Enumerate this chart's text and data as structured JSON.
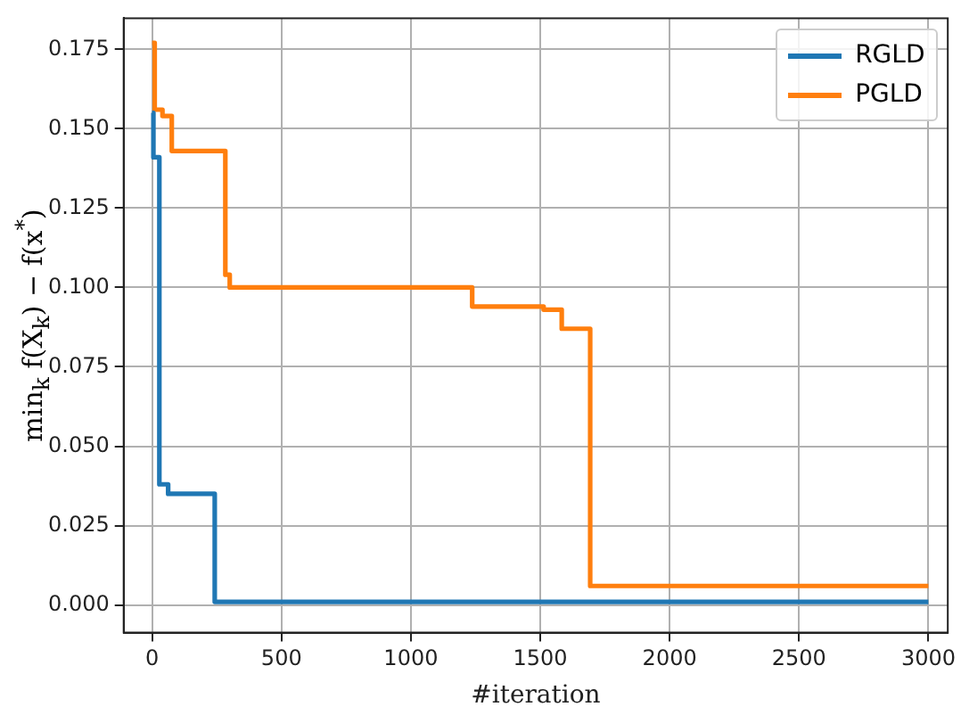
{
  "chart_data": {
    "type": "step",
    "xlabel": "#iteration",
    "ylabel": "min$_{k}$ f(X$_{k}$) − f(x$^{*}$)",
    "xlim": [
      -110,
      3075
    ],
    "ylim": [
      -0.0087,
      0.1848
    ],
    "xticks": [
      0,
      500,
      1000,
      1500,
      2000,
      2500,
      3000
    ],
    "yticks": [
      {
        "value": 0,
        "label": "0.000"
      },
      {
        "value": 0.025,
        "label": "0.025"
      },
      {
        "value": 0.05,
        "label": "0.050"
      },
      {
        "value": 0.075,
        "label": "0.075"
      },
      {
        "value": 0.1,
        "label": "0.100"
      },
      {
        "value": 0.125,
        "label": "0.125"
      },
      {
        "value": 0.15,
        "label": "0.150"
      },
      {
        "value": 0.175,
        "label": "0.175"
      }
    ],
    "grid": true,
    "legend": "top right",
    "series": [
      {
        "name": "RGLD",
        "color": "#1f77b4",
        "x": [
          0,
          5,
          28,
          62,
          242,
          3000
        ],
        "values": [
          0.155,
          0.141,
          0.038,
          0.035,
          0.001,
          0.001
        ]
      },
      {
        "name": "PGLD",
        "color": "#ff7f0e",
        "x": [
          0,
          10,
          40,
          76,
          283,
          300,
          1237,
          1513,
          1583,
          1693,
          3000
        ],
        "values": [
          0.177,
          0.156,
          0.154,
          0.143,
          0.104,
          0.1,
          0.094,
          0.093,
          0.087,
          0.006,
          0.006
        ]
      }
    ]
  }
}
